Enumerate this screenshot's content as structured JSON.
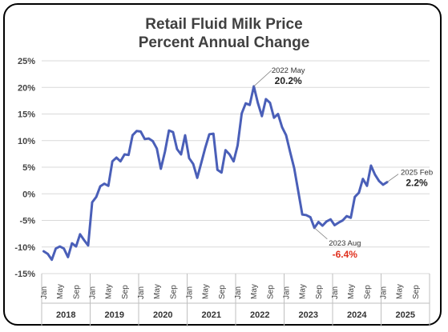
{
  "chart_data": {
    "type": "line",
    "title": "Retail Fluid Milk Price",
    "subtitle": "Percent Annual Change",
    "ylim": [
      -15,
      25
    ],
    "yticks": [
      -15,
      -10,
      -5,
      0,
      5,
      10,
      15,
      20,
      25
    ],
    "ytick_labels": [
      "-15%",
      "-10%",
      "-5%",
      "0%",
      "5%",
      "10%",
      "15%",
      "20%",
      "25%"
    ],
    "month_labels": [
      "Jan",
      "May",
      "Sep"
    ],
    "years": [
      "2018",
      "2019",
      "2020",
      "2021",
      "2022",
      "2023",
      "2024",
      "2025"
    ],
    "grid": true,
    "series": [
      {
        "color": "#4a5fb8",
        "start": "2018-01",
        "values": [
          -10.8,
          -11.3,
          -12.4,
          -10.3,
          -9.9,
          -10.3,
          -11.9,
          -9.3,
          -9.9,
          -7.6,
          -8.7,
          -9.7,
          -1.6,
          -0.6,
          1.4,
          1.9,
          1.5,
          6.1,
          6.8,
          6.1,
          7.4,
          7.3,
          11.0,
          11.8,
          11.7,
          10.3,
          10.4,
          9.9,
          8.5,
          4.7,
          7.9,
          11.9,
          11.6,
          8.4,
          7.4,
          11.0,
          6.7,
          5.6,
          3.0,
          5.8,
          8.7,
          11.2,
          11.3,
          4.5,
          4.0,
          8.2,
          7.4,
          6.1,
          9.1,
          15.1,
          17.0,
          16.7,
          20.2,
          17.1,
          14.6,
          17.8,
          17.1,
          14.3,
          15.0,
          12.5,
          11.0,
          7.8,
          4.8,
          0.5,
          -3.9,
          -4.0,
          -4.4,
          -6.4,
          -5.3,
          -6.0,
          -5.2,
          -4.8,
          -5.9,
          -5.4,
          -5.0,
          -4.2,
          -4.5,
          -0.6,
          0.2,
          2.8,
          1.5,
          5.3,
          3.6,
          2.4,
          1.7,
          2.2
        ]
      }
    ],
    "annotations": [
      {
        "label": "2022 May",
        "value": "20.2%",
        "color": "#222222"
      },
      {
        "label": "2023 Aug",
        "value": "-6.4%",
        "color": "#e0301e"
      },
      {
        "label": "2025 Feb",
        "value": "2.2%",
        "color": "#222222"
      }
    ]
  }
}
